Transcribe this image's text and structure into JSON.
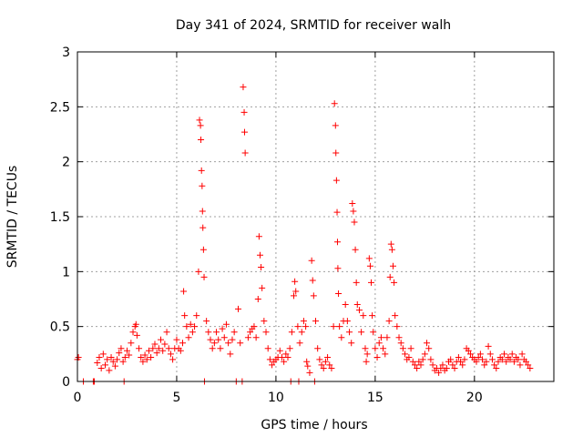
{
  "chart_data": {
    "type": "scatter",
    "title": "Day 341 of 2024, SRMTID for receiver walh",
    "xlabel": "GPS time / hours",
    "ylabel": "SRMTID / TECUs",
    "xlim": [
      0,
      24
    ],
    "ylim": [
      0,
      3
    ],
    "x_ticks": [
      0,
      5,
      10,
      15,
      20
    ],
    "x_tick_labels": [
      "0",
      "5",
      "10",
      "15",
      "20"
    ],
    "y_ticks": [
      0,
      0.5,
      1,
      1.5,
      2,
      2.5,
      3
    ],
    "y_tick_labels": [
      "0",
      "0.5",
      "1",
      "1.5",
      "2",
      "2.5",
      "3"
    ],
    "grid": true,
    "legend": "none",
    "marker": "+",
    "series": [
      {
        "name": "SRMTID",
        "color": "#ff0000",
        "points": [
          [
            0.0,
            0.2
          ],
          [
            0.05,
            0.22
          ],
          [
            0.3,
            0.0
          ],
          [
            0.8,
            0.0
          ],
          [
            0.85,
            0.0
          ],
          [
            1.0,
            0.17
          ],
          [
            1.1,
            0.22
          ],
          [
            1.2,
            0.12
          ],
          [
            1.3,
            0.25
          ],
          [
            1.4,
            0.15
          ],
          [
            1.5,
            0.2
          ],
          [
            1.6,
            0.1
          ],
          [
            1.7,
            0.22
          ],
          [
            1.8,
            0.18
          ],
          [
            1.9,
            0.14
          ],
          [
            2.0,
            0.2
          ],
          [
            2.1,
            0.26
          ],
          [
            2.2,
            0.3
          ],
          [
            2.3,
            0.18
          ],
          [
            2.35,
            0.0
          ],
          [
            2.4,
            0.22
          ],
          [
            2.5,
            0.28
          ],
          [
            2.6,
            0.24
          ],
          [
            2.7,
            0.35
          ],
          [
            2.8,
            0.45
          ],
          [
            2.9,
            0.5
          ],
          [
            2.95,
            0.52
          ],
          [
            3.0,
            0.42
          ],
          [
            3.1,
            0.3
          ],
          [
            3.2,
            0.22
          ],
          [
            3.3,
            0.18
          ],
          [
            3.4,
            0.24
          ],
          [
            3.5,
            0.2
          ],
          [
            3.6,
            0.28
          ],
          [
            3.7,
            0.22
          ],
          [
            3.8,
            0.3
          ],
          [
            3.9,
            0.34
          ],
          [
            4.0,
            0.26
          ],
          [
            4.1,
            0.3
          ],
          [
            4.2,
            0.38
          ],
          [
            4.3,
            0.28
          ],
          [
            4.4,
            0.34
          ],
          [
            4.5,
            0.45
          ],
          [
            4.6,
            0.3
          ],
          [
            4.7,
            0.25
          ],
          [
            4.8,
            0.2
          ],
          [
            4.9,
            0.3
          ],
          [
            5.0,
            0.38
          ],
          [
            5.1,
            0.3
          ],
          [
            5.2,
            0.28
          ],
          [
            5.3,
            0.35
          ],
          [
            5.35,
            0.82
          ],
          [
            5.4,
            0.6
          ],
          [
            5.5,
            0.5
          ],
          [
            5.6,
            0.4
          ],
          [
            5.7,
            0.52
          ],
          [
            5.8,
            0.45
          ],
          [
            5.9,
            0.5
          ],
          [
            6.0,
            0.6
          ],
          [
            6.1,
            1.0
          ],
          [
            6.15,
            2.38
          ],
          [
            6.2,
            2.33
          ],
          [
            6.22,
            2.2
          ],
          [
            6.25,
            1.92
          ],
          [
            6.28,
            1.78
          ],
          [
            6.3,
            1.55
          ],
          [
            6.32,
            1.4
          ],
          [
            6.35,
            1.2
          ],
          [
            6.38,
            0.95
          ],
          [
            6.4,
            0.0
          ],
          [
            6.5,
            0.55
          ],
          [
            6.6,
            0.45
          ],
          [
            6.7,
            0.38
          ],
          [
            6.8,
            0.3
          ],
          [
            6.9,
            0.35
          ],
          [
            7.0,
            0.45
          ],
          [
            7.1,
            0.38
          ],
          [
            7.2,
            0.3
          ],
          [
            7.3,
            0.48
          ],
          [
            7.4,
            0.4
          ],
          [
            7.5,
            0.52
          ],
          [
            7.6,
            0.35
          ],
          [
            7.7,
            0.25
          ],
          [
            7.8,
            0.38
          ],
          [
            7.9,
            0.45
          ],
          [
            8.0,
            0.0
          ],
          [
            8.1,
            0.66
          ],
          [
            8.2,
            0.35
          ],
          [
            8.3,
            0.0
          ],
          [
            8.35,
            2.68
          ],
          [
            8.4,
            2.45
          ],
          [
            8.42,
            2.27
          ],
          [
            8.45,
            2.08
          ],
          [
            8.6,
            0.4
          ],
          [
            8.7,
            0.45
          ],
          [
            8.8,
            0.48
          ],
          [
            8.9,
            0.5
          ],
          [
            9.0,
            0.4
          ],
          [
            9.1,
            0.75
          ],
          [
            9.15,
            1.32
          ],
          [
            9.2,
            1.15
          ],
          [
            9.25,
            1.04
          ],
          [
            9.3,
            0.85
          ],
          [
            9.4,
            0.55
          ],
          [
            9.5,
            0.45
          ],
          [
            9.6,
            0.3
          ],
          [
            9.7,
            0.2
          ],
          [
            9.8,
            0.15
          ],
          [
            9.9,
            0.18
          ],
          [
            10.0,
            0.2
          ],
          [
            10.1,
            0.22
          ],
          [
            10.2,
            0.28
          ],
          [
            10.3,
            0.22
          ],
          [
            10.4,
            0.18
          ],
          [
            10.5,
            0.25
          ],
          [
            10.6,
            0.22
          ],
          [
            10.7,
            0.3
          ],
          [
            10.75,
            0.0
          ],
          [
            10.8,
            0.45
          ],
          [
            10.9,
            0.78
          ],
          [
            10.95,
            0.91
          ],
          [
            11.0,
            0.82
          ],
          [
            11.1,
            0.5
          ],
          [
            11.15,
            0.0
          ],
          [
            11.2,
            0.35
          ],
          [
            11.3,
            0.45
          ],
          [
            11.4,
            0.55
          ],
          [
            11.5,
            0.5
          ],
          [
            11.55,
            0.18
          ],
          [
            11.6,
            0.14
          ],
          [
            11.7,
            0.08
          ],
          [
            11.8,
            1.1
          ],
          [
            11.85,
            0.92
          ],
          [
            11.9,
            0.78
          ],
          [
            11.95,
            0.0
          ],
          [
            12.0,
            0.55
          ],
          [
            12.1,
            0.3
          ],
          [
            12.2,
            0.2
          ],
          [
            12.3,
            0.15
          ],
          [
            12.4,
            0.12
          ],
          [
            12.5,
            0.18
          ],
          [
            12.6,
            0.22
          ],
          [
            12.7,
            0.15
          ],
          [
            12.8,
            0.12
          ],
          [
            12.9,
            0.5
          ],
          [
            12.95,
            2.53
          ],
          [
            13.0,
            2.33
          ],
          [
            13.02,
            2.08
          ],
          [
            13.05,
            1.83
          ],
          [
            13.08,
            1.54
          ],
          [
            13.1,
            1.27
          ],
          [
            13.12,
            1.03
          ],
          [
            13.15,
            0.8
          ],
          [
            13.2,
            0.5
          ],
          [
            13.3,
            0.4
          ],
          [
            13.4,
            0.55
          ],
          [
            13.5,
            0.7
          ],
          [
            13.6,
            0.55
          ],
          [
            13.7,
            0.45
          ],
          [
            13.8,
            0.35
          ],
          [
            13.85,
            1.62
          ],
          [
            13.9,
            1.55
          ],
          [
            13.95,
            1.45
          ],
          [
            14.0,
            1.2
          ],
          [
            14.05,
            0.9
          ],
          [
            14.1,
            0.7
          ],
          [
            14.2,
            0.65
          ],
          [
            14.3,
            0.45
          ],
          [
            14.4,
            0.6
          ],
          [
            14.5,
            0.3
          ],
          [
            14.55,
            0.18
          ],
          [
            14.6,
            0.25
          ],
          [
            14.7,
            1.12
          ],
          [
            14.75,
            1.05
          ],
          [
            14.8,
            0.9
          ],
          [
            14.85,
            0.6
          ],
          [
            14.9,
            0.45
          ],
          [
            15.0,
            0.3
          ],
          [
            15.1,
            0.22
          ],
          [
            15.2,
            0.35
          ],
          [
            15.3,
            0.4
          ],
          [
            15.4,
            0.3
          ],
          [
            15.5,
            0.25
          ],
          [
            15.6,
            0.4
          ],
          [
            15.7,
            0.55
          ],
          [
            15.75,
            0.95
          ],
          [
            15.8,
            1.25
          ],
          [
            15.85,
            1.2
          ],
          [
            15.9,
            1.05
          ],
          [
            15.95,
            0.9
          ],
          [
            16.0,
            0.6
          ],
          [
            16.1,
            0.5
          ],
          [
            16.2,
            0.4
          ],
          [
            16.3,
            0.35
          ],
          [
            16.4,
            0.3
          ],
          [
            16.5,
            0.25
          ],
          [
            16.6,
            0.2
          ],
          [
            16.7,
            0.22
          ],
          [
            16.8,
            0.3
          ],
          [
            16.9,
            0.18
          ],
          [
            17.0,
            0.15
          ],
          [
            17.1,
            0.12
          ],
          [
            17.2,
            0.18
          ],
          [
            17.3,
            0.15
          ],
          [
            17.4,
            0.2
          ],
          [
            17.5,
            0.25
          ],
          [
            17.6,
            0.35
          ],
          [
            17.7,
            0.3
          ],
          [
            17.8,
            0.2
          ],
          [
            17.9,
            0.15
          ],
          [
            18.0,
            0.1
          ],
          [
            18.1,
            0.12
          ],
          [
            18.2,
            0.08
          ],
          [
            18.3,
            0.12
          ],
          [
            18.4,
            0.15
          ],
          [
            18.5,
            0.1
          ],
          [
            18.6,
            0.12
          ],
          [
            18.7,
            0.18
          ],
          [
            18.8,
            0.2
          ],
          [
            18.9,
            0.15
          ],
          [
            19.0,
            0.12
          ],
          [
            19.1,
            0.18
          ],
          [
            19.2,
            0.22
          ],
          [
            19.3,
            0.18
          ],
          [
            19.4,
            0.15
          ],
          [
            19.5,
            0.2
          ],
          [
            19.6,
            0.3
          ],
          [
            19.7,
            0.28
          ],
          [
            19.8,
            0.25
          ],
          [
            19.9,
            0.22
          ],
          [
            20.0,
            0.2
          ],
          [
            20.1,
            0.18
          ],
          [
            20.2,
            0.22
          ],
          [
            20.3,
            0.25
          ],
          [
            20.4,
            0.2
          ],
          [
            20.5,
            0.15
          ],
          [
            20.6,
            0.18
          ],
          [
            20.7,
            0.32
          ],
          [
            20.8,
            0.25
          ],
          [
            20.9,
            0.2
          ],
          [
            21.0,
            0.15
          ],
          [
            21.1,
            0.12
          ],
          [
            21.2,
            0.18
          ],
          [
            21.3,
            0.22
          ],
          [
            21.4,
            0.2
          ],
          [
            21.5,
            0.25
          ],
          [
            21.6,
            0.18
          ],
          [
            21.7,
            0.22
          ],
          [
            21.8,
            0.2
          ],
          [
            21.9,
            0.25
          ],
          [
            22.0,
            0.18
          ],
          [
            22.1,
            0.22
          ],
          [
            22.2,
            0.2
          ],
          [
            22.3,
            0.15
          ],
          [
            22.4,
            0.25
          ],
          [
            22.5,
            0.2
          ],
          [
            22.6,
            0.18
          ],
          [
            22.7,
            0.15
          ],
          [
            22.8,
            0.12
          ]
        ]
      }
    ]
  }
}
